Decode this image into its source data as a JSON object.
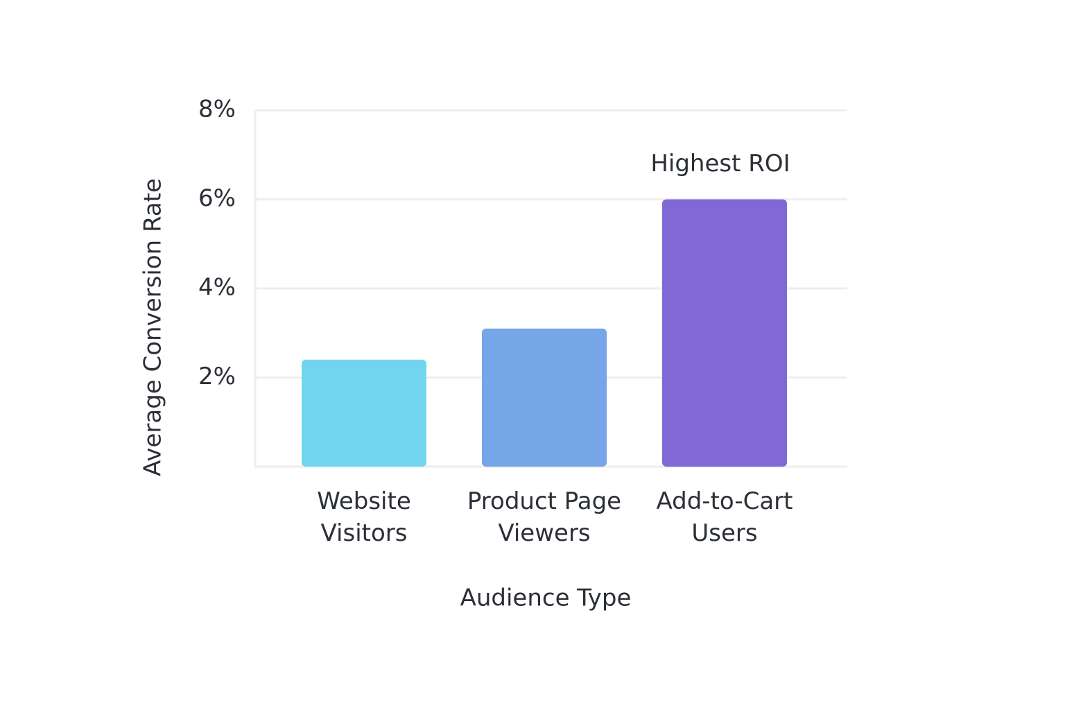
{
  "chart_data": {
    "type": "bar",
    "x_label": "Audience Type",
    "y_label": "Average Conversion Rate",
    "categories": [
      "Website Visitors",
      "Product Page Viewers",
      "Add-to-Cart Users"
    ],
    "values": [
      2.4,
      3.1,
      6
    ],
    "colors": [
      "#72d5ef",
      "#76a5e8",
      "#8068d6"
    ],
    "annotation": "Highest ROI",
    "ylim": [
      0,
      8
    ],
    "yticks": [
      {
        "value": 2,
        "label": "2%"
      },
      {
        "value": 4,
        "label": "4%"
      },
      {
        "value": 6,
        "label": "6%"
      },
      {
        "value": 8,
        "label": "8%"
      }
    ],
    "grid": true
  }
}
